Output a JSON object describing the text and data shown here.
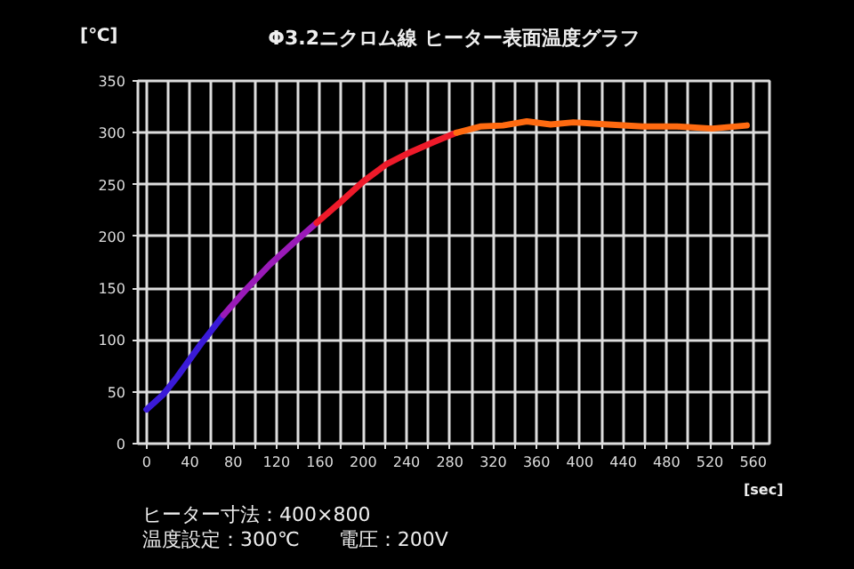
{
  "chart_data": {
    "type": "line",
    "title": "Φ3.2ニクロム線 ヒーター表面温度グラフ",
    "xlabel": "[sec]",
    "ylabel": "[℃]",
    "annotations": [
      "ヒーター寸法：400×800",
      "温度設定：300℃　　電圧：200V"
    ],
    "xlim": [
      -8,
      575
    ],
    "ylim": [
      0,
      350
    ],
    "xticks": [
      0,
      {
        "value": 20,
        "label": null
      },
      40,
      {
        "value": 60,
        "label": null
      },
      80,
      {
        "value": 100,
        "label": null
      },
      120,
      {
        "value": 140,
        "label": null
      },
      160,
      {
        "value": 180,
        "label": null
      },
      200,
      {
        "value": 220,
        "label": null
      },
      240,
      {
        "value": 260,
        "label": null
      },
      280,
      {
        "value": 300,
        "label": null
      },
      320,
      {
        "value": 340,
        "label": null
      },
      360,
      {
        "value": 380,
        "label": null
      },
      400,
      {
        "value": 420,
        "label": null
      },
      440,
      {
        "value": 460,
        "label": null
      },
      480,
      {
        "value": 500,
        "label": null
      },
      520,
      {
        "value": 540,
        "label": null
      },
      560
    ],
    "yticks": [
      0,
      50,
      100,
      150,
      200,
      250,
      300,
      350
    ],
    "grid": true,
    "marker": "none",
    "line_style": "solid",
    "series": [
      {
        "color": "#3a1ad8",
        "x": [
          0,
          15,
          28,
          50,
          71
        ],
        "values": [
          33,
          47,
          64,
          96,
          124
        ]
      },
      {
        "color": "#9a1ab8",
        "x": [
          71,
          93,
          114,
          136,
          157
        ],
        "values": [
          124,
          150,
          173,
          194,
          213
        ]
      },
      {
        "color": "#ee1a2a",
        "x": [
          157,
          179,
          200,
          222,
          243,
          265,
          286
        ],
        "values": [
          213,
          233,
          253,
          270,
          281,
          291,
          300
        ]
      },
      {
        "color": "#ff6a10",
        "x": [
          286,
          308,
          329,
          351,
          373,
          394,
          426,
          458,
          490,
          522,
          554
        ],
        "values": [
          300,
          306,
          307,
          311,
          308,
          310,
          308,
          306,
          306,
          304,
          307
        ]
      }
    ]
  }
}
